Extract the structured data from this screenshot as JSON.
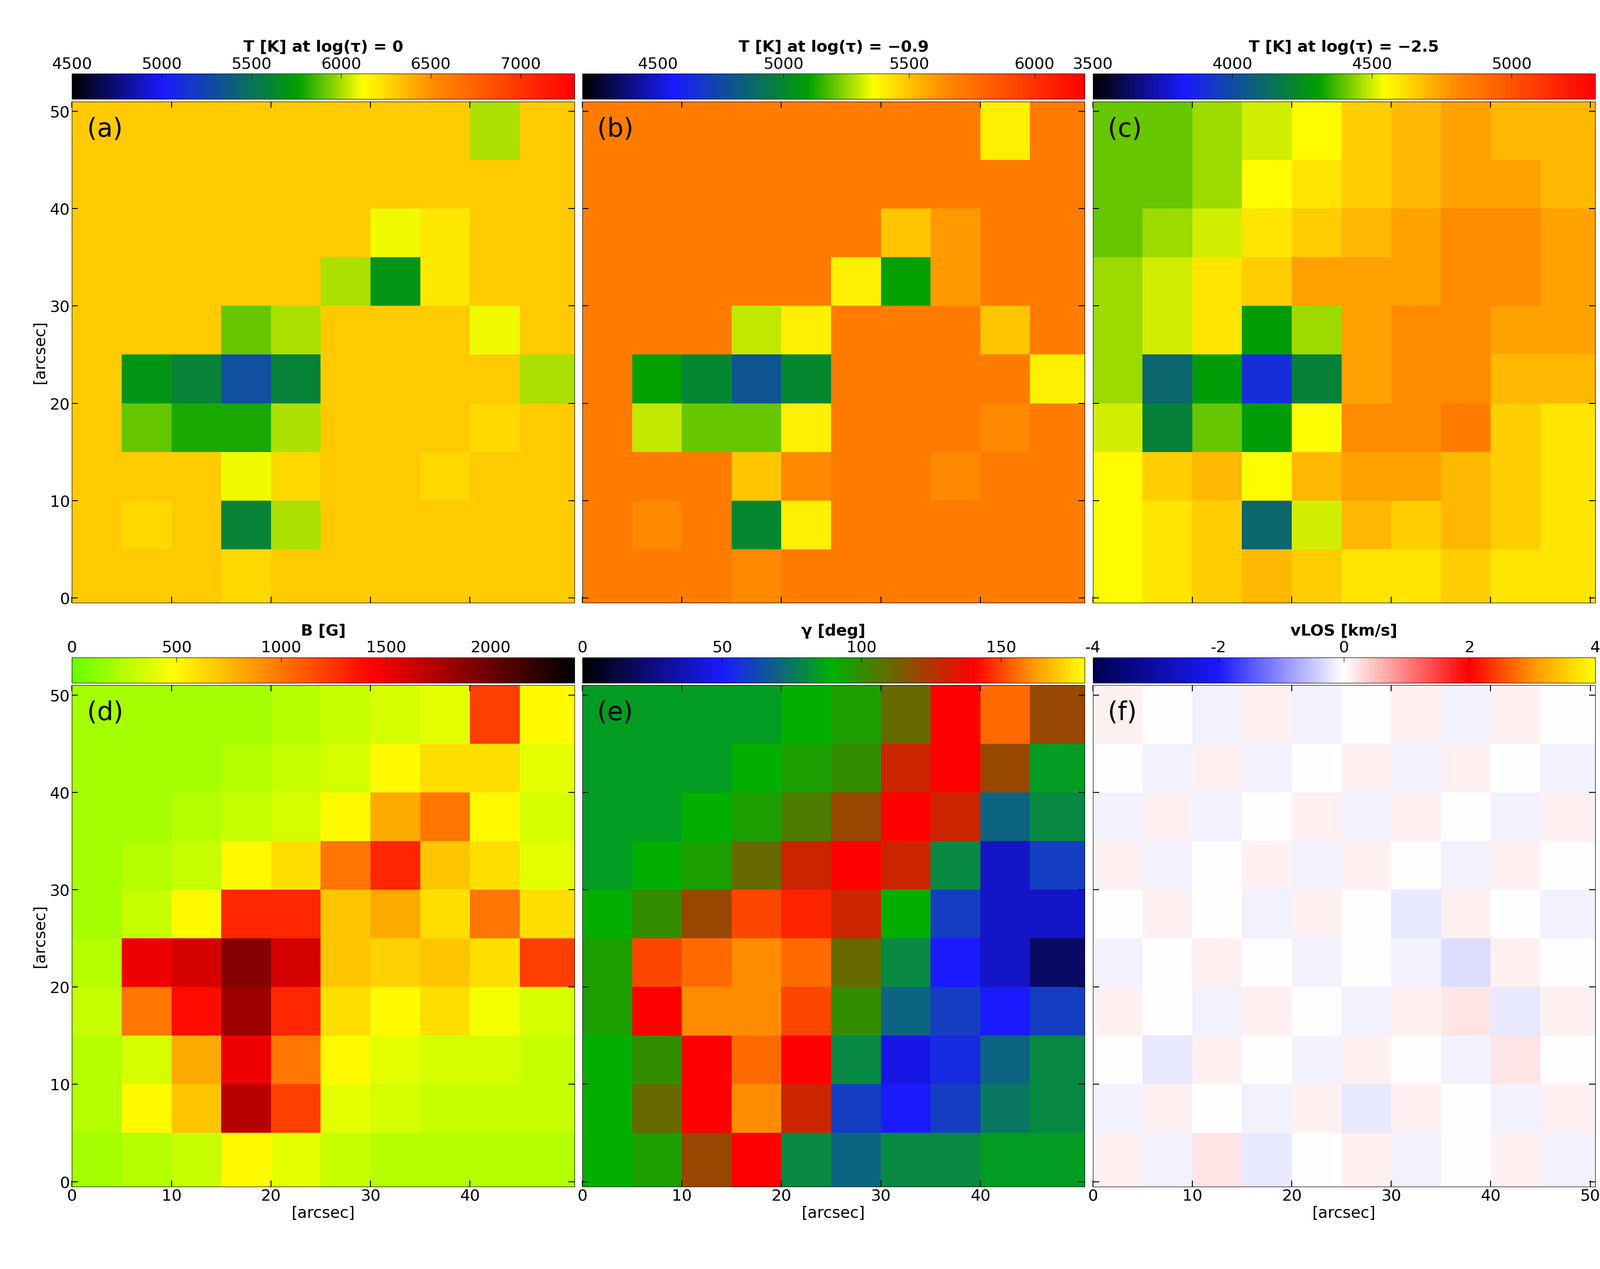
{
  "chart_data": [
    {
      "type": "heatmap",
      "panel_label": "(a)",
      "colorbar_label": "T [K] at log(τ) = 0",
      "colorbar_range": [
        4500,
        7300
      ],
      "colorbar_ticks": [
        4500,
        5000,
        5500,
        6000,
        6500,
        7000
      ],
      "xlim": [
        0,
        50.5
      ],
      "ylim": [
        -0.5,
        51
      ],
      "xticks": [
        0,
        10,
        20,
        30,
        40
      ],
      "yticks": [
        0,
        10,
        20,
        30,
        40,
        50
      ],
      "tick_labels": "y",
      "ylabel": "[arcsec]",
      "x_edges": [
        0,
        5,
        10,
        15,
        20,
        25,
        30,
        35,
        40,
        45,
        50.5
      ],
      "y_edges": [
        -0.5,
        5,
        10,
        15,
        20,
        25,
        30,
        35,
        40,
        45,
        51
      ],
      "cells": [
        [
          6300,
          6300,
          6300,
          6250,
          6300,
          6300,
          6300,
          6300,
          6300,
          6300
        ],
        [
          6300,
          6250,
          6300,
          5600,
          6000,
          6300,
          6300,
          6300,
          6300,
          6300
        ],
        [
          6300,
          6300,
          6300,
          6100,
          6250,
          6300,
          6300,
          6250,
          6300,
          6300
        ],
        [
          6300,
          5900,
          5800,
          5800,
          6000,
          6300,
          6300,
          6300,
          6250,
          6300
        ],
        [
          6300,
          5700,
          5600,
          5300,
          5600,
          6300,
          6300,
          6300,
          6300,
          6000
        ],
        [
          6300,
          6300,
          6300,
          5900,
          6000,
          6300,
          6300,
          6300,
          6100,
          6300
        ],
        [
          6300,
          6300,
          6300,
          6300,
          6300,
          6000,
          5700,
          6200,
          6300,
          6300
        ],
        [
          6300,
          6300,
          6300,
          6300,
          6300,
          6300,
          6100,
          6200,
          6300,
          6300
        ],
        [
          6300,
          6300,
          6300,
          6300,
          6300,
          6300,
          6300,
          6300,
          6300,
          6300
        ],
        [
          6300,
          6300,
          6300,
          6300,
          6300,
          6300,
          6300,
          6300,
          6000,
          6300
        ]
      ]
    },
    {
      "type": "heatmap",
      "panel_label": "(b)",
      "colorbar_label": "T [K] at log(τ) = −0.9",
      "colorbar_range": [
        4200,
        6200
      ],
      "colorbar_ticks": [
        4500,
        5000,
        5500,
        6000
      ],
      "xlim": [
        0,
        50.5
      ],
      "ylim": [
        -0.5,
        51
      ],
      "xticks": [
        0,
        10,
        20,
        30,
        40
      ],
      "yticks": [
        0,
        10,
        20,
        30,
        40,
        50
      ],
      "tick_labels": false,
      "x_edges": [
        0,
        5,
        10,
        15,
        20,
        25,
        30,
        35,
        40,
        45,
        50.5
      ],
      "y_edges": [
        -0.5,
        5,
        10,
        15,
        20,
        25,
        30,
        35,
        40,
        45,
        51
      ],
      "cells": [
        [
          5700,
          5700,
          5700,
          5650,
          5700,
          5700,
          5700,
          5700,
          5700,
          5700
        ],
        [
          5700,
          5650,
          5700,
          5000,
          5400,
          5700,
          5700,
          5700,
          5700,
          5700
        ],
        [
          5700,
          5700,
          5700,
          5500,
          5650,
          5700,
          5700,
          5650,
          5700,
          5700
        ],
        [
          5700,
          5300,
          5200,
          5200,
          5400,
          5700,
          5700,
          5700,
          5650,
          5700
        ],
        [
          5700,
          5100,
          5000,
          4800,
          5000,
          5700,
          5700,
          5700,
          5700,
          5400
        ],
        [
          5700,
          5700,
          5700,
          5300,
          5400,
          5700,
          5700,
          5700,
          5500,
          5700
        ],
        [
          5700,
          5700,
          5700,
          5700,
          5700,
          5400,
          5100,
          5600,
          5700,
          5700
        ],
        [
          5700,
          5700,
          5700,
          5700,
          5700,
          5700,
          5500,
          5600,
          5700,
          5700
        ],
        [
          5700,
          5700,
          5700,
          5700,
          5700,
          5700,
          5700,
          5700,
          5700,
          5700
        ],
        [
          5700,
          5700,
          5700,
          5700,
          5700,
          5700,
          5700,
          5700,
          5400,
          5700
        ]
      ]
    },
    {
      "type": "heatmap",
      "panel_label": "(c)",
      "colorbar_label": "T [K] at log(τ) = −2.5",
      "colorbar_range": [
        3500,
        5300
      ],
      "colorbar_ticks": [
        3500,
        4000,
        4500,
        5000
      ],
      "xlim": [
        0,
        50.5
      ],
      "ylim": [
        -0.5,
        51
      ],
      "xticks": [
        0,
        10,
        20,
        30,
        40,
        50
      ],
      "yticks": [
        0,
        10,
        20,
        30,
        40,
        50
      ],
      "tick_labels": false,
      "x_edges": [
        0,
        5,
        10,
        15,
        20,
        25,
        30,
        35,
        40,
        45,
        50.5
      ],
      "y_edges": [
        -0.5,
        5,
        10,
        15,
        20,
        25,
        30,
        35,
        40,
        45,
        51
      ],
      "cells": [
        [
          4550,
          4600,
          4650,
          4700,
          4650,
          4600,
          4600,
          4650,
          4600,
          4600
        ],
        [
          4550,
          4600,
          4650,
          4100,
          4500,
          4700,
          4650,
          4700,
          4650,
          4600
        ],
        [
          4550,
          4650,
          4700,
          4550,
          4700,
          4750,
          4750,
          4700,
          4650,
          4600
        ],
        [
          4500,
          4200,
          4400,
          4300,
          4550,
          4800,
          4800,
          4850,
          4650,
          4600
        ],
        [
          4450,
          4100,
          4300,
          3900,
          4200,
          4750,
          4800,
          4800,
          4700,
          4700
        ],
        [
          4450,
          4500,
          4600,
          4300,
          4450,
          4750,
          4800,
          4800,
          4750,
          4750
        ],
        [
          4450,
          4500,
          4600,
          4650,
          4750,
          4750,
          4750,
          4800,
          4800,
          4750
        ],
        [
          4400,
          4450,
          4500,
          4600,
          4650,
          4700,
          4750,
          4800,
          4800,
          4750
        ],
        [
          4400,
          4400,
          4450,
          4550,
          4600,
          4650,
          4700,
          4750,
          4750,
          4700
        ],
        [
          4400,
          4400,
          4450,
          4500,
          4550,
          4650,
          4700,
          4750,
          4700,
          4700
        ]
      ]
    },
    {
      "type": "heatmap",
      "panel_label": "(d)",
      "colorbar_label": "B [G]",
      "colorbar_range": [
        0,
        2400
      ],
      "colorbar_ticks": [
        0,
        500,
        1000,
        1500,
        2000
      ],
      "xlim": [
        0,
        50.5
      ],
      "ylim": [
        -0.5,
        51
      ],
      "xticks": [
        0,
        10,
        20,
        30,
        40
      ],
      "yticks": [
        0,
        10,
        20,
        30,
        40,
        50
      ],
      "tick_labels": true,
      "xlabel": "[arcsec]",
      "ylabel": "[arcsec]",
      "x_edges": [
        0,
        5,
        10,
        15,
        20,
        25,
        30,
        35,
        40,
        45,
        50.5
      ],
      "y_edges": [
        -0.5,
        5,
        10,
        15,
        20,
        25,
        30,
        35,
        40,
        45,
        51
      ],
      "cells": [
        [
          200,
          250,
          300,
          500,
          400,
          300,
          250,
          250,
          250,
          250
        ],
        [
          250,
          500,
          700,
          1700,
          1200,
          400,
          350,
          300,
          300,
          300
        ],
        [
          250,
          350,
          800,
          1500,
          1000,
          500,
          400,
          350,
          350,
          300
        ],
        [
          300,
          1000,
          1400,
          1800,
          1300,
          600,
          500,
          600,
          450,
          350
        ],
        [
          250,
          1500,
          1600,
          1900,
          1600,
          700,
          650,
          700,
          600,
          1200
        ],
        [
          200,
          300,
          500,
          1300,
          1300,
          700,
          800,
          600,
          1000,
          600
        ],
        [
          200,
          250,
          300,
          500,
          600,
          1000,
          1300,
          700,
          600,
          400
        ],
        [
          200,
          200,
          250,
          300,
          350,
          500,
          800,
          1000,
          500,
          350
        ],
        [
          200,
          200,
          200,
          250,
          300,
          350,
          500,
          600,
          600,
          400
        ],
        [
          200,
          200,
          200,
          200,
          250,
          300,
          350,
          400,
          1200,
          500
        ]
      ]
    },
    {
      "type": "heatmap",
      "panel_label": "(e)",
      "colorbar_label": "γ [deg]",
      "colorbar_range": [
        0,
        180
      ],
      "colorbar_ticks": [
        0,
        50,
        100,
        150
      ],
      "xlim": [
        0,
        50.5
      ],
      "ylim": [
        -0.5,
        51
      ],
      "xticks": [
        0,
        10,
        20,
        30,
        40
      ],
      "yticks": [
        0,
        10,
        20,
        30,
        40,
        50
      ],
      "tick_labels": "x",
      "xlabel": "[arcsec]",
      "x_edges": [
        0,
        5,
        10,
        15,
        20,
        25,
        30,
        35,
        40,
        45,
        50.5
      ],
      "y_edges": [
        -0.5,
        5,
        10,
        15,
        20,
        25,
        30,
        35,
        40,
        45,
        51
      ],
      "cells": [
        [
          90,
          95,
          120,
          140,
          80,
          70,
          80,
          80,
          85,
          85
        ],
        [
          90,
          110,
          140,
          160,
          130,
          60,
          50,
          60,
          75,
          80
        ],
        [
          90,
          100,
          140,
          155,
          140,
          80,
          45,
          55,
          70,
          80
        ],
        [
          95,
          140,
          160,
          160,
          150,
          100,
          70,
          60,
          50,
          60
        ],
        [
          95,
          150,
          155,
          160,
          155,
          110,
          80,
          50,
          40,
          20
        ],
        [
          90,
          100,
          120,
          150,
          145,
          130,
          90,
          60,
          40,
          40
        ],
        [
          85,
          90,
          95,
          110,
          130,
          140,
          130,
          80,
          40,
          60
        ],
        [
          85,
          85,
          90,
          95,
          105,
          120,
          140,
          130,
          70,
          80
        ],
        [
          85,
          85,
          85,
          90,
          95,
          100,
          130,
          140,
          120,
          85
        ],
        [
          85,
          85,
          85,
          85,
          90,
          95,
          110,
          140,
          155,
          120
        ]
      ]
    },
    {
      "type": "heatmap",
      "panel_label": "(f)",
      "colorbar_label": "vLOS [km/s]",
      "colorbar_range": [
        -4,
        4
      ],
      "colorbar_ticks": [
        -4,
        -2,
        0,
        2,
        4
      ],
      "xlim": [
        0,
        50.5
      ],
      "ylim": [
        -0.5,
        51
      ],
      "xticks": [
        0,
        10,
        20,
        30,
        40,
        50
      ],
      "yticks": [
        0,
        10,
        20,
        30,
        40,
        50
      ],
      "tick_labels": "x",
      "xlabel": "[arcsec]",
      "x_edges": [
        0,
        5,
        10,
        15,
        20,
        25,
        30,
        35,
        40,
        45,
        50.5
      ],
      "y_edges": [
        -0.5,
        5,
        10,
        15,
        20,
        25,
        30,
        35,
        40,
        45,
        51
      ],
      "cells": [
        [
          0.1,
          -0.1,
          0.2,
          -0.2,
          0.0,
          0.1,
          -0.1,
          0.0,
          0.1,
          -0.1
        ],
        [
          -0.1,
          0.1,
          0.0,
          -0.1,
          0.1,
          -0.2,
          0.1,
          0.0,
          -0.1,
          0.1
        ],
        [
          0.0,
          -0.2,
          0.1,
          0.0,
          -0.1,
          0.1,
          0.0,
          -0.1,
          0.2,
          0.0
        ],
        [
          0.1,
          0.0,
          -0.1,
          0.1,
          0.0,
          -0.1,
          0.1,
          0.2,
          -0.2,
          0.1
        ],
        [
          -0.1,
          0.0,
          0.1,
          0.0,
          -0.1,
          0.0,
          -0.1,
          -0.3,
          0.1,
          0.0
        ],
        [
          0.0,
          0.1,
          0.0,
          -0.1,
          0.1,
          0.0,
          -0.2,
          0.1,
          0.0,
          -0.1
        ],
        [
          0.1,
          -0.1,
          0.0,
          0.1,
          -0.1,
          0.1,
          0.0,
          -0.1,
          0.1,
          0.0
        ],
        [
          -0.1,
          0.1,
          -0.1,
          0.0,
          0.1,
          -0.1,
          0.1,
          0.0,
          -0.1,
          0.1
        ],
        [
          0.0,
          -0.1,
          0.1,
          -0.1,
          0.0,
          0.1,
          -0.1,
          0.1,
          0.0,
          -0.1
        ],
        [
          0.1,
          0.0,
          -0.1,
          0.1,
          -0.1,
          0.0,
          0.1,
          -0.1,
          0.1,
          0.0
        ]
      ]
    }
  ]
}
